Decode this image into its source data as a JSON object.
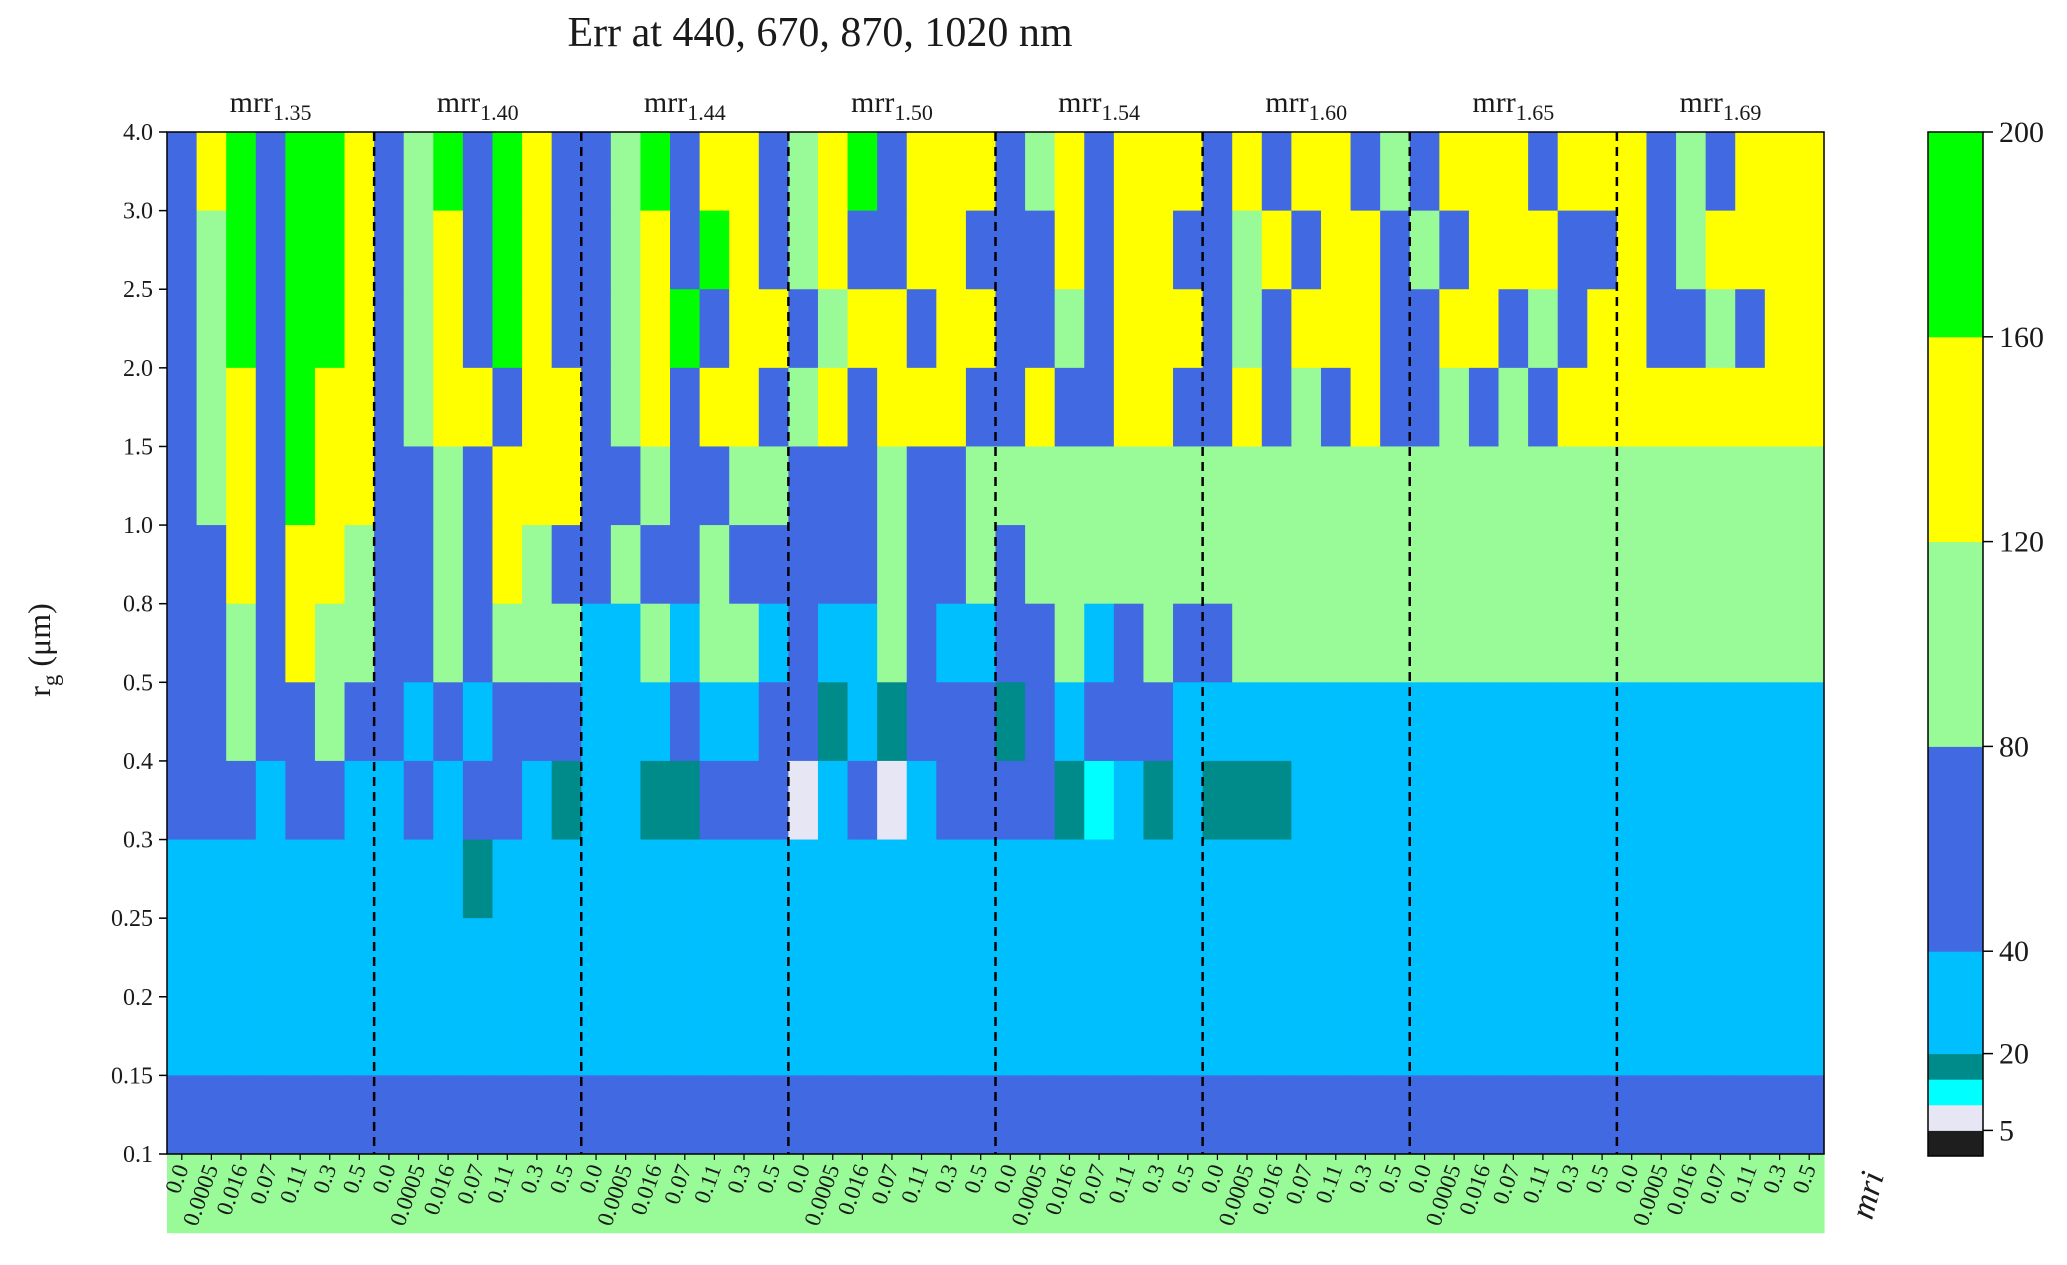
{
  "chart_data": {
    "type": "heatmap",
    "title": "Err at 440, 670, 870, 1020 nm",
    "ylabel": "r",
    "ylabel_sub": "g",
    "ylabel_unit": "(μm)",
    "xlabel": "mri",
    "y_ticks": [
      "0.1",
      "0.15",
      "0.2",
      "0.25",
      "0.3",
      "0.4",
      "0.5",
      "0.8",
      "1.0",
      "1.5",
      "2.0",
      "2.5",
      "3.0",
      "4.0"
    ],
    "mri_values": [
      "0.0",
      "0.0005",
      "0.016",
      "0.07",
      "0.11",
      "0.3",
      "0.5"
    ],
    "groups": [
      {
        "label": "mrr",
        "sub": "1.35"
      },
      {
        "label": "mrr",
        "sub": "1.40"
      },
      {
        "label": "mrr",
        "sub": "1.44"
      },
      {
        "label": "mrr",
        "sub": "1.50"
      },
      {
        "label": "mrr",
        "sub": "1.54"
      },
      {
        "label": "mrr",
        "sub": "1.60"
      },
      {
        "label": "mrr",
        "sub": "1.65"
      },
      {
        "label": "mrr",
        "sub": "1.69"
      }
    ],
    "colorbar": {
      "bounds": [
        0,
        5,
        10,
        15,
        20,
        40,
        80,
        120,
        160,
        200
      ],
      "tick_labels": [
        "5",
        "20",
        "40",
        "80",
        "120",
        "160",
        "200"
      ],
      "tick_values": [
        5,
        20,
        40,
        80,
        120,
        160,
        200
      ],
      "colors": [
        "#1e1e1e",
        "#e6e6f5",
        "#00ffff",
        "#008b8b",
        "#00bfff",
        "#4169e1",
        "#98fb98",
        "#ffff00",
        "#00ff00"
      ]
    },
    "value_codes": {
      "k": 2,
      "w": 7,
      "c": 12,
      "t": 17,
      "s": 30,
      "b": 60,
      "g": 100,
      "y": 140,
      "G": 180
    },
    "rows_top_to_bottom": [
      "byGbGGybgGbGybbgGbyybgyGbyyybgybyyybybyybgbyyybyyybgbyyybgyby",
      "bgGbGGybgybGybbgybGybgybbyybbbybyybbgybyybgbyyybbybgyy",
      "bgGbGGybgybGybbgyGbyybgyybyybbgbyyybgbyyybbyybgbyybbgby",
      "bgybGyybgyybyybgybyybgybyyybbybbyybbybgbybbgbgby",
      "bgybGyybbgbyyybbgbbggbbbgbbgg",
      "bbybyygbbgbygbbgbbgbbbbbgbbgbgg",
      "bbgbyggbbgbgggssgsggsbssgbssbbgsbgbbg",
      "bbgbbgbbsbsbbbsssbssbbtstbbbtbsbbbsssss",
      "bbbsbbssbsbbstssttbbbwsbwsbbbbtcststttssssss",
      "sssssssssstssssssssssssssssss",
      "sssssssssssssssssss",
      "sssssssssssssssss",
      "bbbbbbbbbbbbbbbbbbbbbb",
      "ggggggggggggggggggggggggggggggggggggggggggggggggggggggggggg"
    ]
  }
}
